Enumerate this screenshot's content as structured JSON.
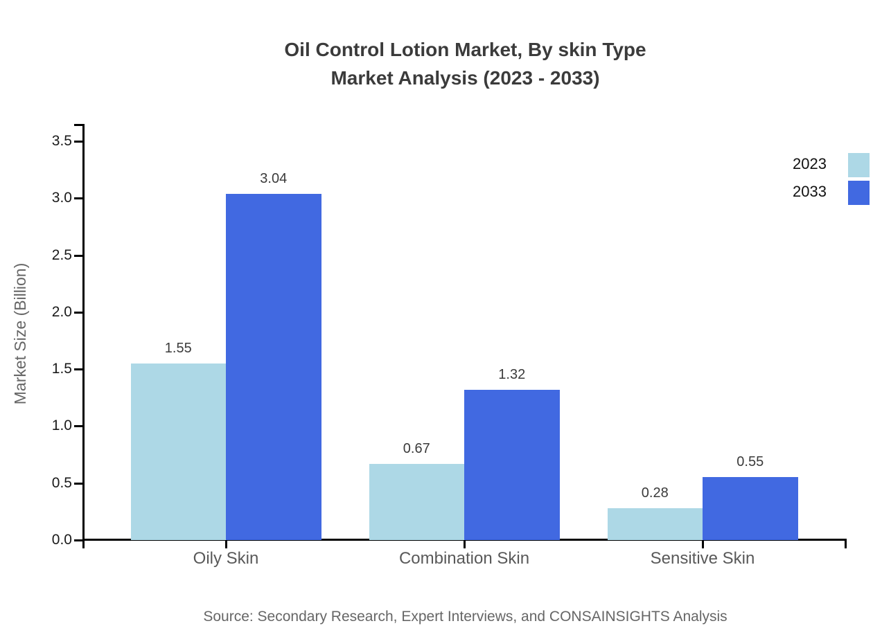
{
  "title": {
    "line1": "Oil Control Lotion Market, By skin Type",
    "line2": "Market Analysis (2023 - 2033)"
  },
  "footer": {
    "source": "Source: Secondary Research, Expert Interviews, and CONSAINSIGHTS Analysis"
  },
  "chart_data": {
    "type": "bar",
    "title": "Oil Control Lotion Market, By skin Type Market Analysis (2023 - 2033)",
    "categories": [
      "Oily Skin",
      "Combination Skin",
      "Sensitive Skin"
    ],
    "series": [
      {
        "name": "2023",
        "color": "#ADD8E6",
        "values": [
          1.55,
          0.67,
          0.28
        ]
      },
      {
        "name": "2033",
        "color": "#4169E1",
        "values": [
          3.04,
          1.32,
          0.55
        ]
      }
    ],
    "xlabel": "",
    "ylabel": "Market Size (Billion)",
    "ylim": [
      0,
      3.65
    ],
    "yticks": [
      0.0,
      0.5,
      1.0,
      1.5,
      2.0,
      2.5,
      3.0,
      3.5
    ],
    "grid": false,
    "legend_position": "top-right",
    "value_labels": true,
    "value_label_format": "2-decimals"
  },
  "colors": {
    "series_2023": "#ADD8E6",
    "series_2033": "#4169E1",
    "axis": "#000000",
    "title_text": "#3b3b3b",
    "category_text": "#595959",
    "muted_text": "#666666"
  }
}
